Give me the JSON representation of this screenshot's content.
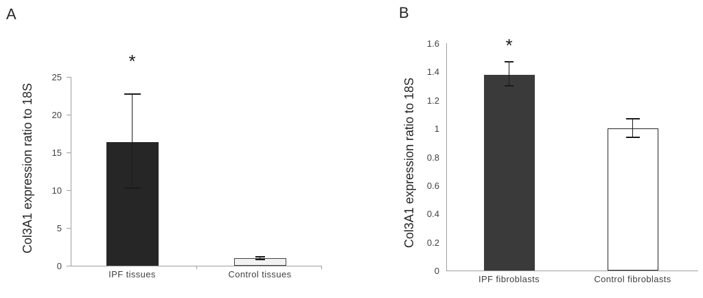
{
  "figure": {
    "panel_a_letter": "A",
    "panel_b_letter": "B"
  },
  "chart_data": [
    {
      "type": "bar",
      "panel_label": "A",
      "title": "",
      "xlabel": "",
      "ylabel": "Col3A1 expression ratio to 18S",
      "categories": [
        "IPF tissues",
        "Control tissues"
      ],
      "values": [
        16.4,
        1.0
      ],
      "errors_plus": [
        6.3,
        0.2
      ],
      "errors_minus": [
        6.1,
        0.2
      ],
      "significance": [
        "*",
        ""
      ],
      "bar_fills": [
        "#262626",
        "#f2f2f2"
      ],
      "bar_borders": [
        "#262626",
        "#404040"
      ],
      "ylim": [
        0,
        25
      ],
      "yticks": [
        0,
        5,
        10,
        15,
        20,
        25
      ],
      "ytick_labels": [
        "0",
        "5",
        "10",
        "15",
        "20",
        "25"
      ],
      "grid": false,
      "legend": "none"
    },
    {
      "type": "bar",
      "panel_label": "B",
      "title": "",
      "xlabel": "",
      "ylabel": "Col3A1 expression ratio to 18S",
      "categories": [
        "IPF fibroblasts",
        "Control fibroblasts"
      ],
      "values": [
        1.38,
        1.0
      ],
      "errors_plus": [
        0.09,
        0.07
      ],
      "errors_minus": [
        0.08,
        0.06
      ],
      "significance": [
        "*",
        ""
      ],
      "bar_fills": [
        "#3a3a3a",
        "#ffffff"
      ],
      "bar_borders": [
        "#3a3a3a",
        "#262626"
      ],
      "ylim": [
        0,
        1.6
      ],
      "yticks": [
        0,
        0.2,
        0.4,
        0.6,
        0.8,
        1.0,
        1.2,
        1.4,
        1.6
      ],
      "ytick_labels": [
        "0",
        "0.2",
        "0.4",
        "0.6",
        "0.8",
        "1",
        "1.2",
        "1.4",
        "1.6"
      ],
      "grid": false,
      "legend": "none"
    }
  ]
}
